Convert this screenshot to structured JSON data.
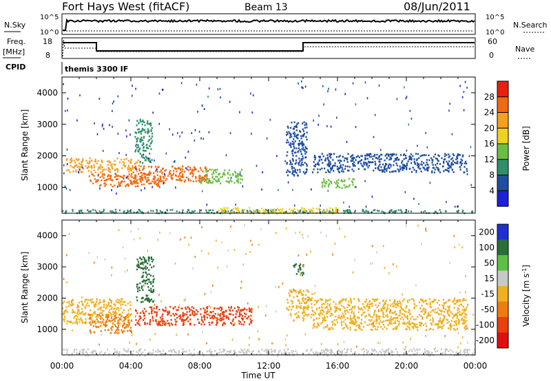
{
  "header": {
    "station": "Fort Hays West (fitACF)",
    "beam": "Beam 13",
    "date": "08/Jun/2011"
  },
  "strip_labels": {
    "nsky": "N.Sky",
    "nsky_hi": "10^5",
    "nsky_lo": "10^0",
    "nsearch": "N.Search",
    "nsearch_hi": "10^5",
    "nsearch_lo": "10^0",
    "freq_line1": "Freq.",
    "freq_line2": "[MHz]",
    "freq_hi": "18",
    "freq_lo": "8",
    "nave": "Nave",
    "nave_hi": "60",
    "nave_lo": "0",
    "cpid": "CPID",
    "cpid_value": "themis 3300 IF"
  },
  "chart_data": [
    {
      "type": "heatmap",
      "title": "",
      "ylabel": "Slant Range [km]",
      "xlabel": "",
      "xlim": [
        "00:00",
        "24:00"
      ],
      "ylim": [
        180,
        4500
      ],
      "x_ticks": [
        "00:00",
        "04:00",
        "08:00",
        "12:00",
        "16:00",
        "20:00",
        "00:00"
      ],
      "y_ticks": [
        1000,
        2000,
        3000,
        4000
      ],
      "colorbar": {
        "label": "Power [dB]",
        "ticks": [
          4,
          8,
          12,
          16,
          20,
          24,
          28
        ],
        "range": [
          0,
          32
        ],
        "colors": [
          "#1f1fd6",
          "#1f4ea0",
          "#2f8f6a",
          "#6dbd45",
          "#f0d020",
          "#f5a020",
          "#f06a10",
          "#e82010"
        ]
      },
      "regions": [
        {
          "t0": 0.2,
          "t1": 4.5,
          "r0": 1500,
          "r1": 1950,
          "value": 20
        },
        {
          "t0": 1.5,
          "t1": 6.0,
          "r0": 1050,
          "r1": 1450,
          "value": 26
        },
        {
          "t0": 4.0,
          "t1": 8.5,
          "r0": 1200,
          "r1": 1700,
          "value": 25
        },
        {
          "t0": 8.0,
          "t1": 10.5,
          "r0": 1150,
          "r1": 1600,
          "value": 14
        },
        {
          "t0": 4.2,
          "t1": 5.2,
          "r0": 1800,
          "r1": 3200,
          "value": 10
        },
        {
          "t0": 13.0,
          "t1": 14.2,
          "r0": 1400,
          "r1": 3100,
          "value": 7
        },
        {
          "t0": 15.0,
          "t1": 17.0,
          "r0": 1000,
          "r1": 1300,
          "value": 12
        },
        {
          "t0": 14.5,
          "t1": 23.5,
          "r0": 1500,
          "r1": 2100,
          "value": 5
        },
        {
          "t0": 0.0,
          "t1": 24.0,
          "r0": 200,
          "r1": 320,
          "value": 9
        },
        {
          "t0": 9.0,
          "t1": 16.0,
          "r0": 200,
          "r1": 380,
          "value": 18
        },
        {
          "t0": 0.0,
          "t1": 24.0,
          "r0": 400,
          "r1": 4400,
          "value": 5
        }
      ]
    },
    {
      "type": "heatmap",
      "title": "",
      "ylabel": "Slant Range [km]",
      "xlabel": "Time UT",
      "xlim": [
        "00:00",
        "24:00"
      ],
      "ylim": [
        180,
        4500
      ],
      "x_ticks": [
        "00:00",
        "04:00",
        "08:00",
        "12:00",
        "16:00",
        "20:00",
        "00:00"
      ],
      "y_ticks": [
        1000,
        2000,
        3000,
        4000
      ],
      "colorbar": {
        "label": "Velocity [m s^-1]",
        "ticks": [
          200,
          100,
          50,
          15,
          -15,
          -50,
          -100,
          -200
        ],
        "colors": [
          "#1f2fd0",
          "#2a6e3a",
          "#5cc040",
          "#c8c8c8",
          "#f0b020",
          "#f07a10",
          "#e84010",
          "#e01010"
        ]
      },
      "regions": [
        {
          "t0": 0.0,
          "t1": 4.0,
          "r0": 1200,
          "r1": 2000,
          "value": 0
        },
        {
          "t0": 1.5,
          "t1": 4.0,
          "r0": 900,
          "r1": 1500,
          "value": -40
        },
        {
          "t0": 4.2,
          "t1": 11.0,
          "r0": 1150,
          "r1": 1750,
          "value": -80
        },
        {
          "t0": 4.3,
          "t1": 5.3,
          "r0": 1850,
          "r1": 3350,
          "value": 180
        },
        {
          "t0": 13.0,
          "t1": 14.5,
          "r0": 1300,
          "r1": 2300,
          "value": 0
        },
        {
          "t0": 13.4,
          "t1": 14.0,
          "r0": 2750,
          "r1": 3150,
          "value": 180
        },
        {
          "t0": 14.5,
          "t1": 23.5,
          "r0": 1000,
          "r1": 2000,
          "value": 0
        },
        {
          "t0": 0.0,
          "t1": 24.0,
          "r0": 180,
          "r1": 400,
          "value": 40
        },
        {
          "t0": 0.0,
          "t1": 24.0,
          "r0": 400,
          "r1": 4400,
          "value": 0
        }
      ]
    }
  ]
}
